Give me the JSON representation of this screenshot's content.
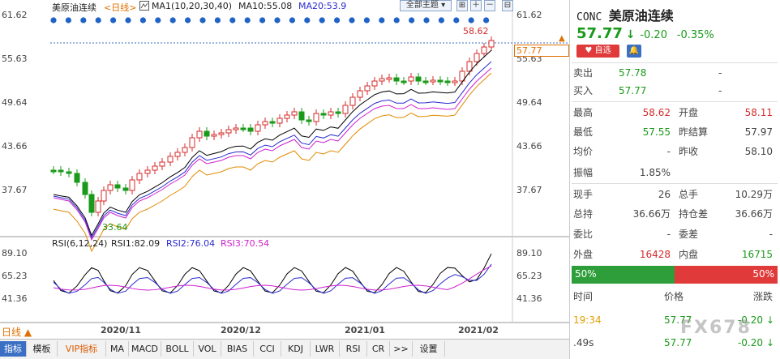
{
  "chart": {
    "instrument_label": "美原油连续",
    "period_label": "<日线>",
    "ma_label": "MA1(10,20,30,40)",
    "ma10_label": "MA10:55.08",
    "ma20_label": "MA20:53.9",
    "theme_button": "全部主题",
    "y_ticks": [
      "61.62",
      "55.63",
      "49.64",
      "43.66",
      "37.67"
    ],
    "high_marker": "58.62",
    "low_marker": "33.64",
    "last_price_tag": "57.77",
    "rsi_label": "RSI(6,12,24)",
    "rsi1_label": "RSI1:82.09",
    "rsi2_label": "RSI2:76.04",
    "rsi3_label": "RSI3:70.54",
    "rsi_ticks": [
      "89.10",
      "65.23",
      "41.36"
    ],
    "x_ticks": [
      "2020/11",
      "2020/12",
      "2021/01",
      "2021/02"
    ],
    "period_switch": "日线",
    "colors": {
      "up": "#d52b2b",
      "down": "#1a9a1a",
      "ma1": "#000000",
      "ma2": "#2a2ad0",
      "ma3": "#d020d0",
      "ma4": "#e08a00"
    }
  },
  "toolbar": {
    "tabs": [
      "指标",
      "模板",
      "VIP指标",
      "MA",
      "MACD",
      "BOLL",
      "VOL",
      "BIAS",
      "CCI",
      "KDJ",
      "LWR",
      "RSI",
      "CR",
      ">>",
      "设置"
    ]
  },
  "quote": {
    "code": "CONC",
    "name": "美原油连续",
    "price": "57.77",
    "change": "-0.20",
    "change_pct": "-0.35%",
    "watch_label": "自选",
    "sell_label": "卖出",
    "sell_price": "57.78",
    "sell_vol": "-",
    "buy_label": "买入",
    "buy_price": "57.77",
    "buy_vol": "-",
    "high_label": "最高",
    "high": "58.62",
    "open_label": "开盘",
    "open": "58.11",
    "low_label": "最低",
    "low": "57.55",
    "prev_settle_label": "昨结算",
    "prev_settle": "57.97",
    "avg_label": "均价",
    "avg": "-",
    "prev_close_label": "昨收",
    "prev_close": "58.10",
    "amp_label": "振幅",
    "amp": "1.85%",
    "cur_vol_label": "现手",
    "cur_vol": "26",
    "total_vol_label": "总手",
    "total_vol": "10.29万",
    "oi_label": "总持",
    "oi": "36.66万",
    "oi_chg_label": "持仓差",
    "oi_chg": "36.66万",
    "wb_label": "委比",
    "wb": "-",
    "wc_label": "委差",
    "wc": "-",
    "outer_label": "外盘",
    "outer": "16428",
    "inner_label": "内盘",
    "inner": "16715",
    "bar_left": "50%",
    "bar_right": "50%",
    "bar_left_pct": 50,
    "trades_header_time": "时间",
    "trades_header_price": "价格",
    "trades_header_chg": "涨跌",
    "trades": [
      {
        "time": "19:34",
        "price": "57.77",
        "chg": "-0.20"
      },
      {
        "time": ".49s",
        "price": "57.77",
        "chg": "-0.20"
      }
    ],
    "watermark": "FX678"
  }
}
